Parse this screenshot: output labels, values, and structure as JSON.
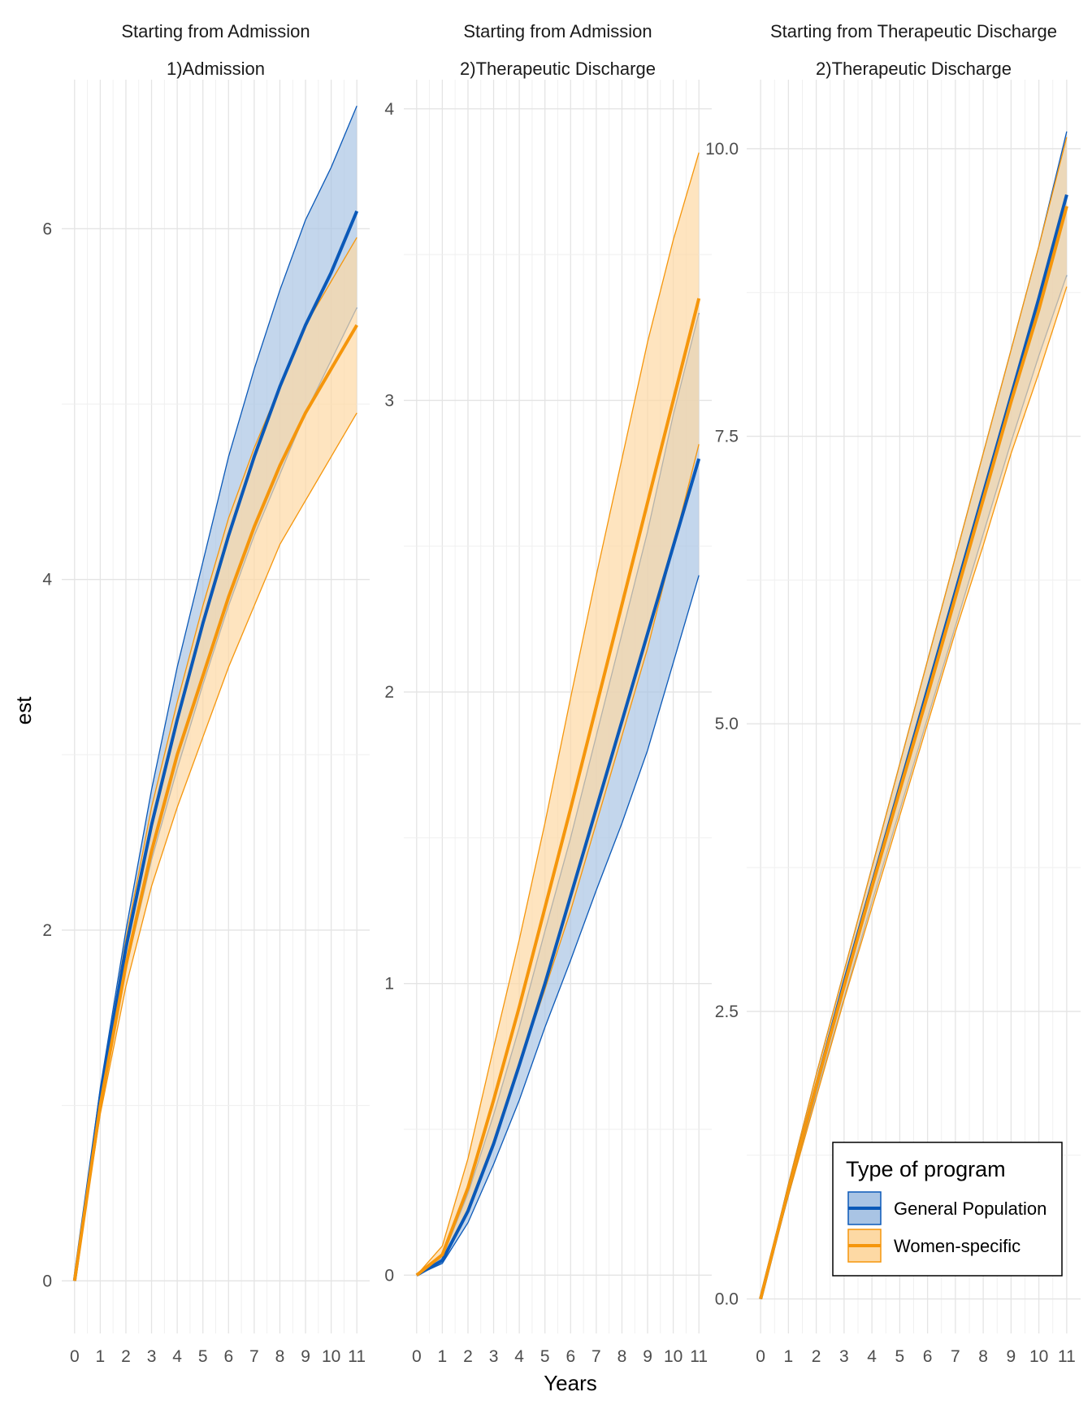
{
  "chart_data": {
    "type": "line",
    "ylabel": "est",
    "xlabel": "Years",
    "x_ticks": [
      "0",
      "1",
      "2",
      "3",
      "4",
      "5",
      "6",
      "7",
      "8",
      "9",
      "10",
      "11"
    ],
    "xlim": [
      -0.5,
      11.5
    ],
    "legend": {
      "title": "Type of program",
      "placement": "bottom-right",
      "entries": [
        {
          "name": "General Population",
          "color": "#0b59b8",
          "fill": "#a9c4e4"
        },
        {
          "name": "Women-specific",
          "color": "#f5960c",
          "fill": "#fdd9a4"
        }
      ]
    },
    "panels": [
      {
        "strip_top": "Starting from Admission",
        "strip_bottom": "1)Admission",
        "ylim": [
          -0.3,
          6.85
        ],
        "y_ticks": [
          0,
          2,
          4,
          6
        ],
        "y_tick_labels": [
          "0",
          "2",
          "4",
          "6"
        ],
        "y_minor": [
          1,
          3,
          5
        ],
        "series": [
          {
            "name": "General Population",
            "x": [
              0,
              1,
              2,
              3,
              4,
              5,
              6,
              7,
              8,
              9,
              10,
              11
            ],
            "est": [
              0,
              1.05,
              1.9,
              2.6,
              3.2,
              3.75,
              4.25,
              4.7,
              5.1,
              5.45,
              5.75,
              6.1
            ],
            "lower": [
              0,
              1.0,
              1.78,
              2.4,
              2.92,
              3.4,
              3.85,
              4.25,
              4.6,
              4.95,
              5.25,
              5.55
            ],
            "upper": [
              0,
              1.1,
              2.0,
              2.8,
              3.5,
              4.1,
              4.7,
              5.2,
              5.65,
              6.05,
              6.35,
              6.7
            ]
          },
          {
            "name": "Women-specific",
            "x": [
              0,
              1,
              2,
              3,
              4,
              5,
              6,
              7,
              8,
              9,
              10,
              11
            ],
            "est": [
              0,
              1.0,
              1.8,
              2.45,
              3.0,
              3.45,
              3.9,
              4.3,
              4.65,
              4.95,
              5.2,
              5.45
            ],
            "lower": [
              0,
              0.95,
              1.68,
              2.25,
              2.7,
              3.1,
              3.5,
              3.85,
              4.2,
              4.45,
              4.7,
              4.95
            ],
            "upper": [
              0,
              1.05,
              1.95,
              2.7,
              3.3,
              3.85,
              4.35,
              4.75,
              5.1,
              5.45,
              5.7,
              5.95
            ]
          }
        ]
      },
      {
        "strip_top": "Starting from Admission",
        "strip_bottom": "2)Therapeutic Discharge",
        "ylim": [
          -0.2,
          4.1
        ],
        "y_ticks": [
          0,
          1,
          2,
          3,
          4
        ],
        "y_tick_labels": [
          "0",
          "1",
          "2",
          "3",
          "4"
        ],
        "y_minor": [
          0.5,
          1.5,
          2.5,
          3.5
        ],
        "series": [
          {
            "name": "General Population",
            "x": [
              0,
              1,
              2,
              3,
              4,
              5,
              6,
              7,
              8,
              9,
              10,
              11
            ],
            "est": [
              0,
              0.05,
              0.22,
              0.45,
              0.72,
              1.0,
              1.3,
              1.6,
              1.9,
              2.2,
              2.5,
              2.8
            ],
            "lower": [
              0,
              0.04,
              0.18,
              0.38,
              0.6,
              0.85,
              1.08,
              1.32,
              1.55,
              1.8,
              2.1,
              2.4
            ],
            "upper": [
              0,
              0.06,
              0.28,
              0.55,
              0.85,
              1.18,
              1.5,
              1.85,
              2.2,
              2.55,
              2.95,
              3.3
            ]
          },
          {
            "name": "Women-specific",
            "x": [
              0,
              1,
              2,
              3,
              4,
              5,
              6,
              7,
              8,
              9,
              10,
              11
            ],
            "est": [
              0,
              0.07,
              0.3,
              0.6,
              0.92,
              1.26,
              1.6,
              1.95,
              2.3,
              2.65,
              3.0,
              3.35
            ],
            "lower": [
              0,
              0.05,
              0.22,
              0.45,
              0.72,
              0.98,
              1.25,
              1.55,
              1.85,
              2.15,
              2.5,
              2.85
            ],
            "upper": [
              0,
              0.1,
              0.4,
              0.78,
              1.15,
              1.55,
              1.98,
              2.4,
              2.8,
              3.2,
              3.55,
              3.85
            ]
          }
        ]
      },
      {
        "strip_top": "Starting from Therapeutic Discharge",
        "strip_bottom": "2)Therapeutic Discharge",
        "ylim": [
          -0.3,
          10.6
        ],
        "y_ticks": [
          0,
          2.5,
          5,
          7.5,
          10
        ],
        "y_tick_labels": [
          "0.0",
          "2.5",
          "5.0",
          "7.5",
          "10.0"
        ],
        "y_minor": [
          1.25,
          3.75,
          6.25,
          8.75
        ],
        "series": [
          {
            "name": "General Population",
            "x": [
              0,
              1,
              2,
              3,
              4,
              5,
              6,
              7,
              8,
              9,
              10,
              11
            ],
            "est": [
              0,
              0.95,
              1.85,
              2.75,
              3.6,
              4.45,
              5.3,
              6.15,
              7.0,
              7.85,
              8.7,
              9.6
            ],
            "lower": [
              0,
              0.9,
              1.78,
              2.62,
              3.45,
              4.25,
              5.05,
              5.85,
              6.65,
              7.45,
              8.2,
              8.9
            ],
            "upper": [
              0,
              1.0,
              1.95,
              2.85,
              3.75,
              4.65,
              5.55,
              6.45,
              7.35,
              8.25,
              9.15,
              10.15
            ]
          },
          {
            "name": "Women-specific",
            "x": [
              0,
              1,
              2,
              3,
              4,
              5,
              6,
              7,
              8,
              9,
              10,
              11
            ],
            "est": [
              0,
              0.95,
              1.85,
              2.72,
              3.58,
              4.42,
              5.25,
              6.1,
              6.95,
              7.8,
              8.6,
              9.5
            ],
            "lower": [
              0,
              0.9,
              1.75,
              2.6,
              3.4,
              4.2,
              5.0,
              5.8,
              6.55,
              7.35,
              8.05,
              8.8
            ],
            "upper": [
              0,
              1.0,
              1.95,
              2.85,
              3.75,
              4.65,
              5.55,
              6.45,
              7.35,
              8.25,
              9.15,
              10.1
            ]
          }
        ]
      }
    ]
  }
}
